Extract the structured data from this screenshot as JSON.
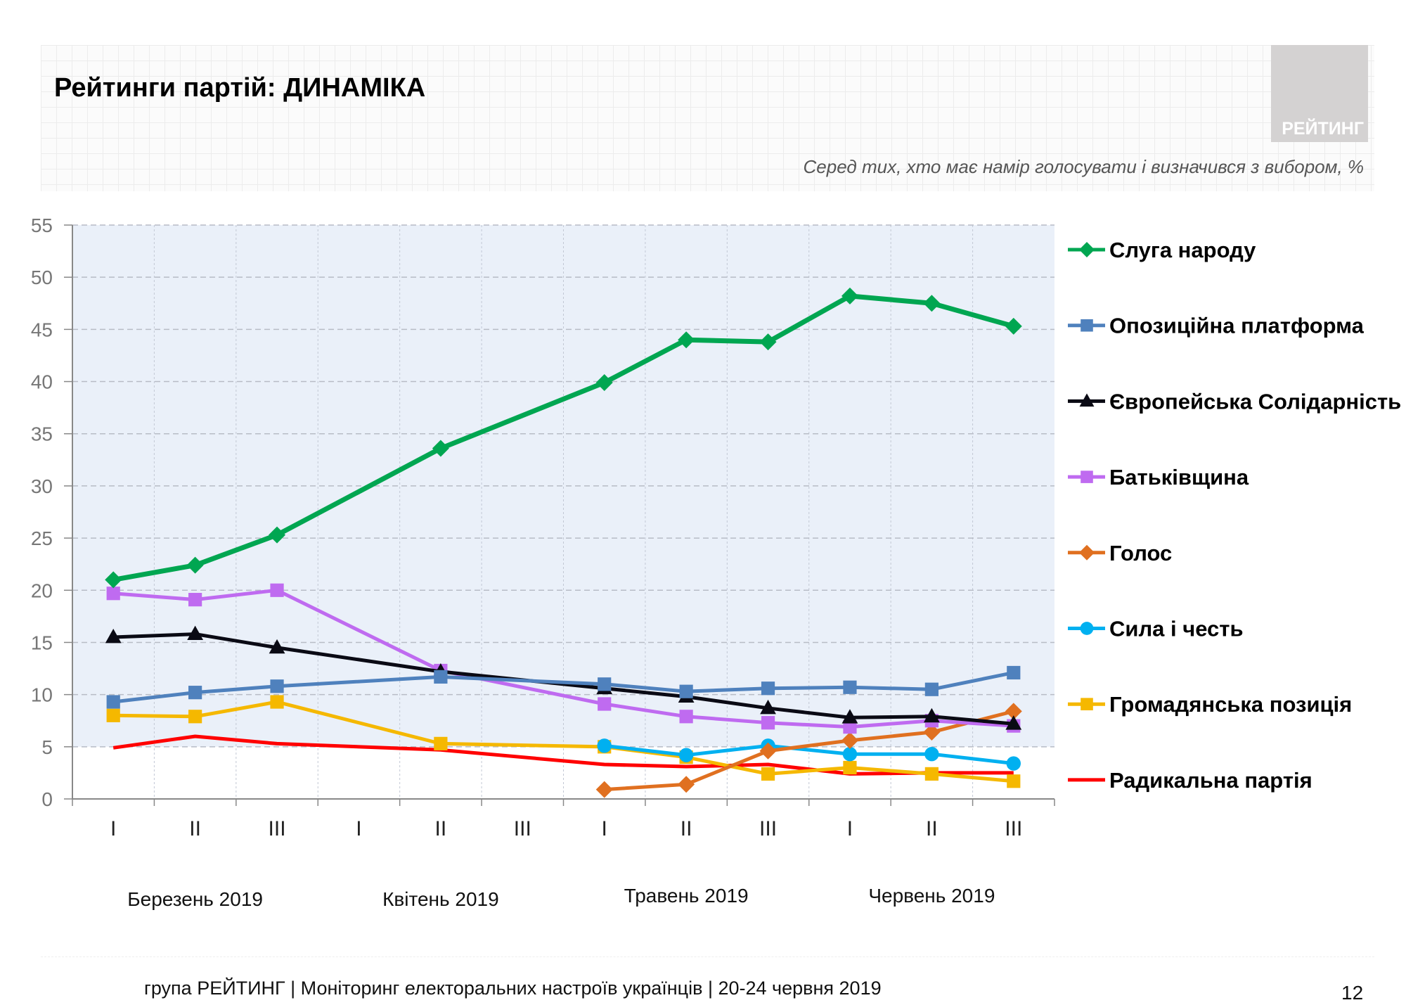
{
  "header": {
    "title": "Рейтинги партій: ДИНАМІКА",
    "subtitle": "Серед тих, хто має намір голосувати і визначився з вибором, %",
    "logo_text": "РЕЙТИНГ"
  },
  "footer": {
    "text": "група РЕЙТИНГ | Моніторинг електоральних настроїв українців | 20-24 червня 2019",
    "page_number": "12"
  },
  "chart_data": {
    "type": "line",
    "title": "",
    "xlabel": "",
    "ylabel": "",
    "ylim": [
      0,
      55
    ],
    "yticks": [
      0,
      5,
      10,
      15,
      20,
      25,
      30,
      35,
      40,
      45,
      50,
      55
    ],
    "grid": true,
    "legend_position": "right",
    "categories": [
      "I",
      "II",
      "III",
      "I",
      "II",
      "III",
      "I",
      "II",
      "III",
      "I",
      "II",
      "III"
    ],
    "months": [
      "Березень 2019",
      "Квітень 2019",
      "Травень 2019",
      "Червень 2019"
    ],
    "series": [
      {
        "name": "Слуга народу",
        "color": "#00A651",
        "marker": "diamond",
        "values": [
          21.0,
          22.4,
          25.3,
          null,
          33.6,
          null,
          39.9,
          44.0,
          43.8,
          48.2,
          47.5,
          45.3
        ]
      },
      {
        "name": "Опозиційна платформа",
        "color": "#4F81BD",
        "marker": "square",
        "values": [
          9.3,
          10.2,
          10.8,
          null,
          11.7,
          null,
          11.0,
          10.3,
          10.6,
          10.7,
          10.5,
          12.1
        ]
      },
      {
        "name": "Європейська Солідарність",
        "color": "#0A0A14",
        "marker": "triangle",
        "values": [
          15.5,
          15.8,
          14.5,
          null,
          12.2,
          null,
          10.6,
          9.8,
          8.7,
          7.8,
          7.9,
          7.2
        ]
      },
      {
        "name": "Батьківщина",
        "color": "#BF6BF0",
        "marker": "square",
        "values": [
          19.7,
          19.1,
          20.0,
          null,
          12.3,
          null,
          9.1,
          7.9,
          7.3,
          6.9,
          7.5,
          7.0
        ]
      },
      {
        "name": "Голос",
        "color": "#E07020",
        "marker": "diamond",
        "values": [
          null,
          null,
          null,
          null,
          null,
          null,
          0.9,
          1.4,
          4.6,
          5.6,
          6.4,
          8.4
        ]
      },
      {
        "name": "Сила і честь",
        "color": "#00B0F0",
        "marker": "circle",
        "values": [
          null,
          null,
          null,
          null,
          null,
          null,
          5.1,
          4.2,
          5.1,
          4.3,
          4.3,
          3.4
        ]
      },
      {
        "name": "Громадянська позиція",
        "color": "#F5B800",
        "marker": "square",
        "values": [
          8.0,
          7.9,
          9.3,
          null,
          5.3,
          null,
          5.0,
          4.0,
          2.4,
          3.0,
          2.4,
          1.7
        ]
      },
      {
        "name": "Радикальна партія",
        "color": "#FF0000",
        "marker": "none",
        "values": [
          4.9,
          6.0,
          5.3,
          null,
          4.7,
          null,
          3.3,
          3.1,
          3.3,
          2.4,
          2.5,
          2.5
        ]
      }
    ]
  }
}
